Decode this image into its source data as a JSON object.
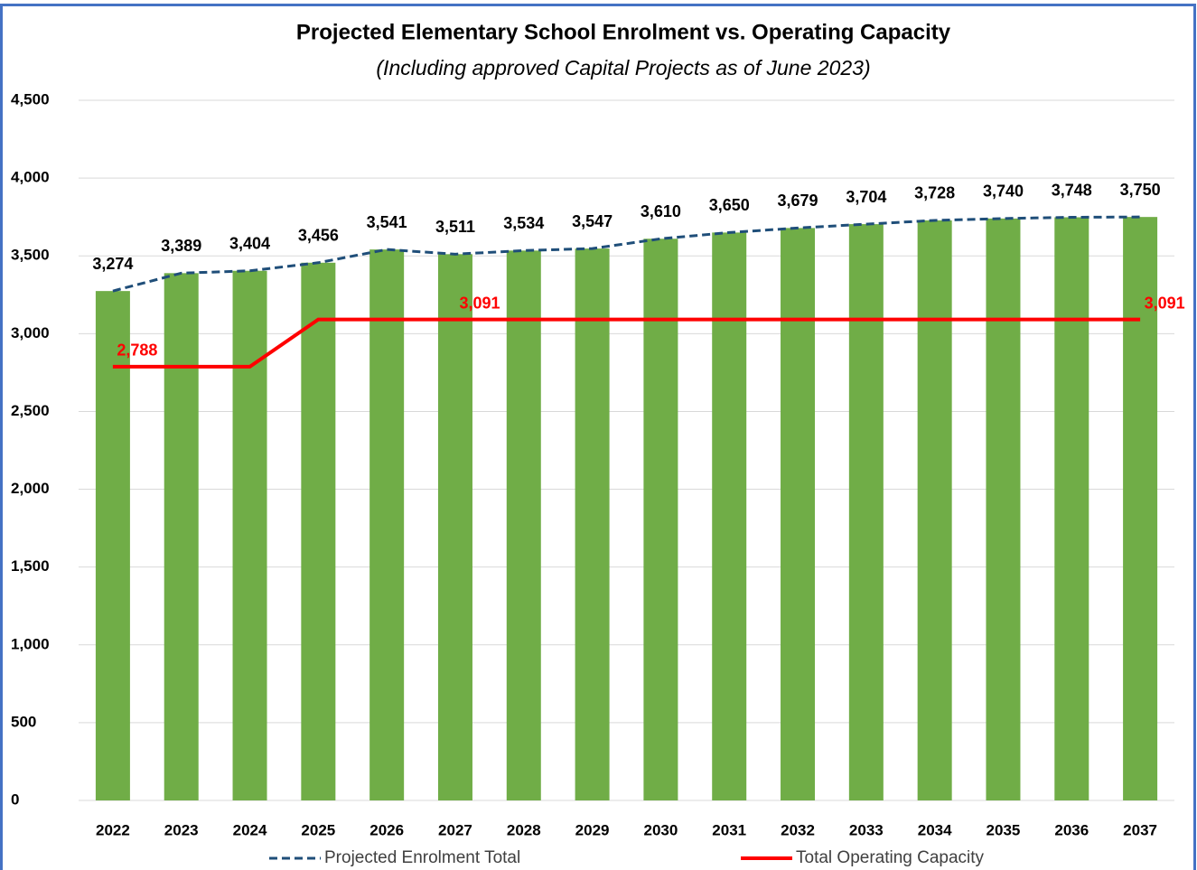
{
  "chart_data": {
    "type": "bar_line",
    "title": "Projected Elementary School Enrolment vs. Operating Capacity",
    "subtitle": "(Including approved Capital Projects as of June 2023)",
    "categories": [
      "2022",
      "2023",
      "2024",
      "2025",
      "2026",
      "2027",
      "2028",
      "2029",
      "2030",
      "2031",
      "2032",
      "2033",
      "2034",
      "2035",
      "2036",
      "2037"
    ],
    "series": [
      {
        "name": "Projected Enrolment Total",
        "bar_color": "#70ad47",
        "color": "#1f4e79",
        "dashed": true,
        "values": [
          3274,
          3389,
          3404,
          3456,
          3541,
          3511,
          3534,
          3547,
          3610,
          3650,
          3679,
          3704,
          3728,
          3740,
          3748,
          3750
        ],
        "value_labels": [
          "3,274",
          "3,389",
          "3,404",
          "3,456",
          "3,541",
          "3,511",
          "3,534",
          "3,547",
          "3,610",
          "3,650",
          "3,679",
          "3,704",
          "3,728",
          "3,740",
          "3,748",
          "3,750"
        ]
      },
      {
        "name": "Total Operating Capacity",
        "color": "#ff0000",
        "dashed": false,
        "values": [
          2788,
          2788,
          2788,
          3091,
          3091,
          3091,
          3091,
          3091,
          3091,
          3091,
          3091,
          3091,
          3091,
          3091,
          3091,
          3091
        ],
        "value_labels": {
          "0": "2,788",
          "5": "3,091",
          "15": "3,091"
        }
      }
    ],
    "ylim": [
      0,
      4500
    ],
    "yticks": [
      0,
      {
        "value": 500,
        "label": "500"
      },
      {
        "value": 1000,
        "label": "1,000"
      },
      {
        "value": 1500,
        "label": "1,500"
      },
      {
        "value": 2000,
        "label": "2,000"
      },
      {
        "value": 2500,
        "label": "2,500"
      },
      {
        "value": 3000,
        "label": "3,000"
      },
      {
        "value": 3500,
        "label": "3,500"
      },
      {
        "value": 4000,
        "label": "4,000"
      },
      {
        "value": 4500,
        "label": "4,500"
      }
    ],
    "grid": true
  }
}
